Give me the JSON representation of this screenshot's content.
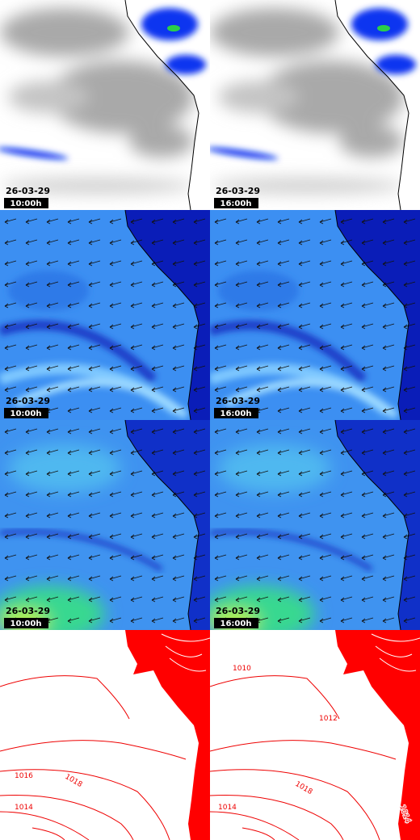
{
  "panels": [
    {
      "date": "26-03-29",
      "time": "10:00h"
    },
    {
      "date": "26-03-29",
      "time": "16:00h"
    },
    {
      "date": "26-03-29",
      "time": "10:00h"
    },
    {
      "date": "26-03-29",
      "time": "16:00h"
    },
    {
      "date": "26-03-29",
      "time": "10:00h"
    },
    {
      "date": "26-03-29",
      "time": "16:00h"
    }
  ],
  "isobar_labels": {
    "left": [
      "1016",
      "1018",
      "1014"
    ],
    "right": [
      "1010",
      "1012",
      "1018",
      "1014",
      "1014"
    ]
  }
}
